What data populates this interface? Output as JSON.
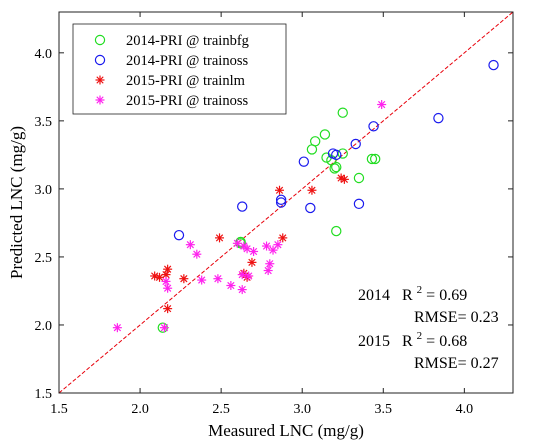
{
  "chart_data": {
    "type": "scatter",
    "title": "",
    "xlabel": "Measured LNC (mg/g)",
    "ylabel": "Predicted LNC (mg/g)",
    "xlim": [
      1.5,
      4.3
    ],
    "ylim": [
      1.5,
      4.3
    ],
    "xticks": [
      "1.5",
      "2.0",
      "2.5",
      "3.0",
      "3.5",
      "4.0"
    ],
    "yticks": [
      "1.5",
      "2.0",
      "2.5",
      "3.0",
      "3.5",
      "4.0"
    ],
    "grid": false,
    "legend_position": "top-left",
    "reference_line": {
      "style": "dashed",
      "color": "#e8000b",
      "from": [
        1.5,
        1.5
      ],
      "to": [
        4.3,
        4.3
      ]
    },
    "series": [
      {
        "name": "2014-PRI @ trainbfg",
        "marker": "circle",
        "color": "#22dd22",
        "x": [
          2.14,
          2.62,
          2.62,
          3.06,
          3.08,
          3.14,
          3.15,
          3.18,
          3.2,
          3.21,
          3.21,
          3.25,
          3.25,
          3.35,
          3.43,
          3.45
        ],
        "y": [
          1.98,
          2.6,
          2.61,
          3.29,
          3.35,
          3.4,
          3.23,
          3.21,
          3.15,
          3.16,
          2.69,
          3.56,
          3.26,
          3.08,
          3.22,
          3.22
        ]
      },
      {
        "name": "2014-PRI @ trainoss",
        "marker": "circle",
        "color": "#1a1aee",
        "x": [
          2.24,
          2.63,
          2.87,
          2.87,
          3.01,
          3.05,
          3.19,
          3.21,
          3.33,
          3.35,
          3.44,
          3.84,
          4.18
        ],
        "y": [
          2.66,
          2.87,
          2.92,
          2.9,
          3.2,
          2.86,
          3.26,
          3.25,
          3.33,
          2.89,
          3.46,
          3.52,
          3.91
        ]
      },
      {
        "name": "2015-PRI @ trainlm",
        "marker": "asterisk",
        "color": "#ee1111",
        "x": [
          2.09,
          2.12,
          2.16,
          2.17,
          2.17,
          2.27,
          2.49,
          2.64,
          2.66,
          2.69,
          2.86,
          2.88,
          3.06,
          3.24,
          3.26
        ],
        "y": [
          2.36,
          2.35,
          2.37,
          2.41,
          2.12,
          2.34,
          2.64,
          2.38,
          2.35,
          2.46,
          2.99,
          2.64,
          2.99,
          3.08,
          3.07
        ]
      },
      {
        "name": "2015-PRI @ trainoss",
        "marker": "asterisk",
        "color": "#ff22ee",
        "x": [
          1.86,
          2.15,
          2.16,
          2.17,
          2.31,
          2.35,
          2.38,
          2.48,
          2.56,
          2.6,
          2.63,
          2.63,
          2.64,
          2.66,
          2.67,
          2.7,
          2.78,
          2.79,
          2.8,
          2.82,
          2.85,
          3.49
        ],
        "y": [
          1.98,
          1.98,
          2.32,
          2.27,
          2.59,
          2.52,
          2.33,
          2.34,
          2.29,
          2.6,
          2.37,
          2.26,
          2.58,
          2.56,
          2.36,
          2.54,
          2.58,
          2.4,
          2.45,
          2.55,
          2.59,
          3.62
        ]
      }
    ],
    "annotations": {
      "line1": {
        "year": "2014",
        "r": "R",
        "sup": "2",
        "value": " = 0.69"
      },
      "line2": {
        "text": "RMSE= 0.23"
      },
      "line3": {
        "year": "2015",
        "r": "R",
        "sup": "2",
        "value": " = 0.68"
      },
      "line4": {
        "text": "RMSE= 0.27"
      }
    }
  }
}
